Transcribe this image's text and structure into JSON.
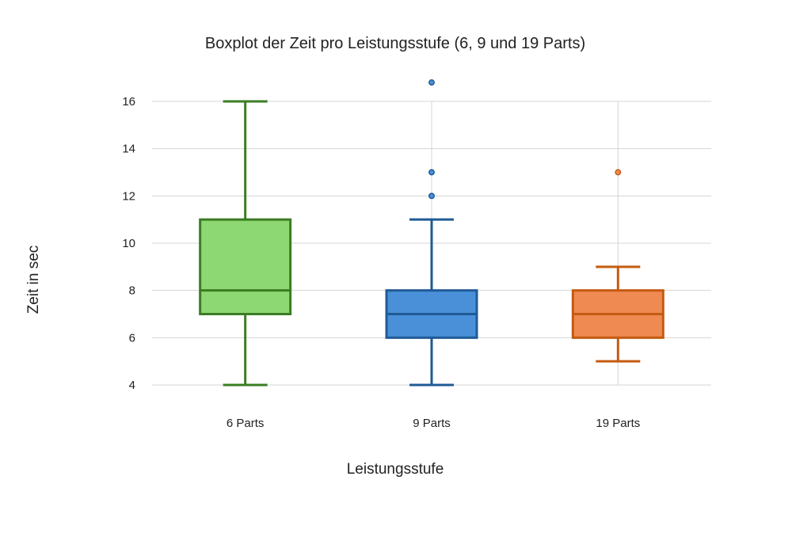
{
  "chart_data": {
    "type": "boxplot",
    "title": "Boxplot der Zeit pro Leistungsstufe (6, 9 und 19 Parts)",
    "xlabel": "Leistungsstufe",
    "ylabel": "Zeit in sec",
    "ylim": [
      4,
      16
    ],
    "yticks": [
      "4",
      "6",
      "8",
      "10",
      "12",
      "14",
      "16"
    ],
    "ytick_values": [
      4,
      6,
      8,
      10,
      12,
      14,
      16
    ],
    "grid": true,
    "legend": "none",
    "categories": [
      "6 Parts",
      "9 Parts",
      "19 Parts"
    ],
    "series": [
      {
        "category": "6 Parts",
        "min": 4,
        "q1": 7,
        "median": 8,
        "q3": 11,
        "max": 16,
        "outliers": [],
        "fill": "#8dd873",
        "stroke": "#3b7d23"
      },
      {
        "category": "9 Parts",
        "min": 4,
        "q1": 6,
        "median": 7,
        "q3": 8,
        "max": 11,
        "outliers": [
          12,
          13,
          16.8
        ],
        "fill": "#4a90d9",
        "stroke": "#1f5a96"
      },
      {
        "category": "19 Parts",
        "min": 5,
        "q1": 6,
        "median": 7,
        "q3": 8,
        "max": 9,
        "outliers": [
          13
        ],
        "fill": "#ee8a52",
        "stroke": "#c55a11"
      }
    ]
  }
}
